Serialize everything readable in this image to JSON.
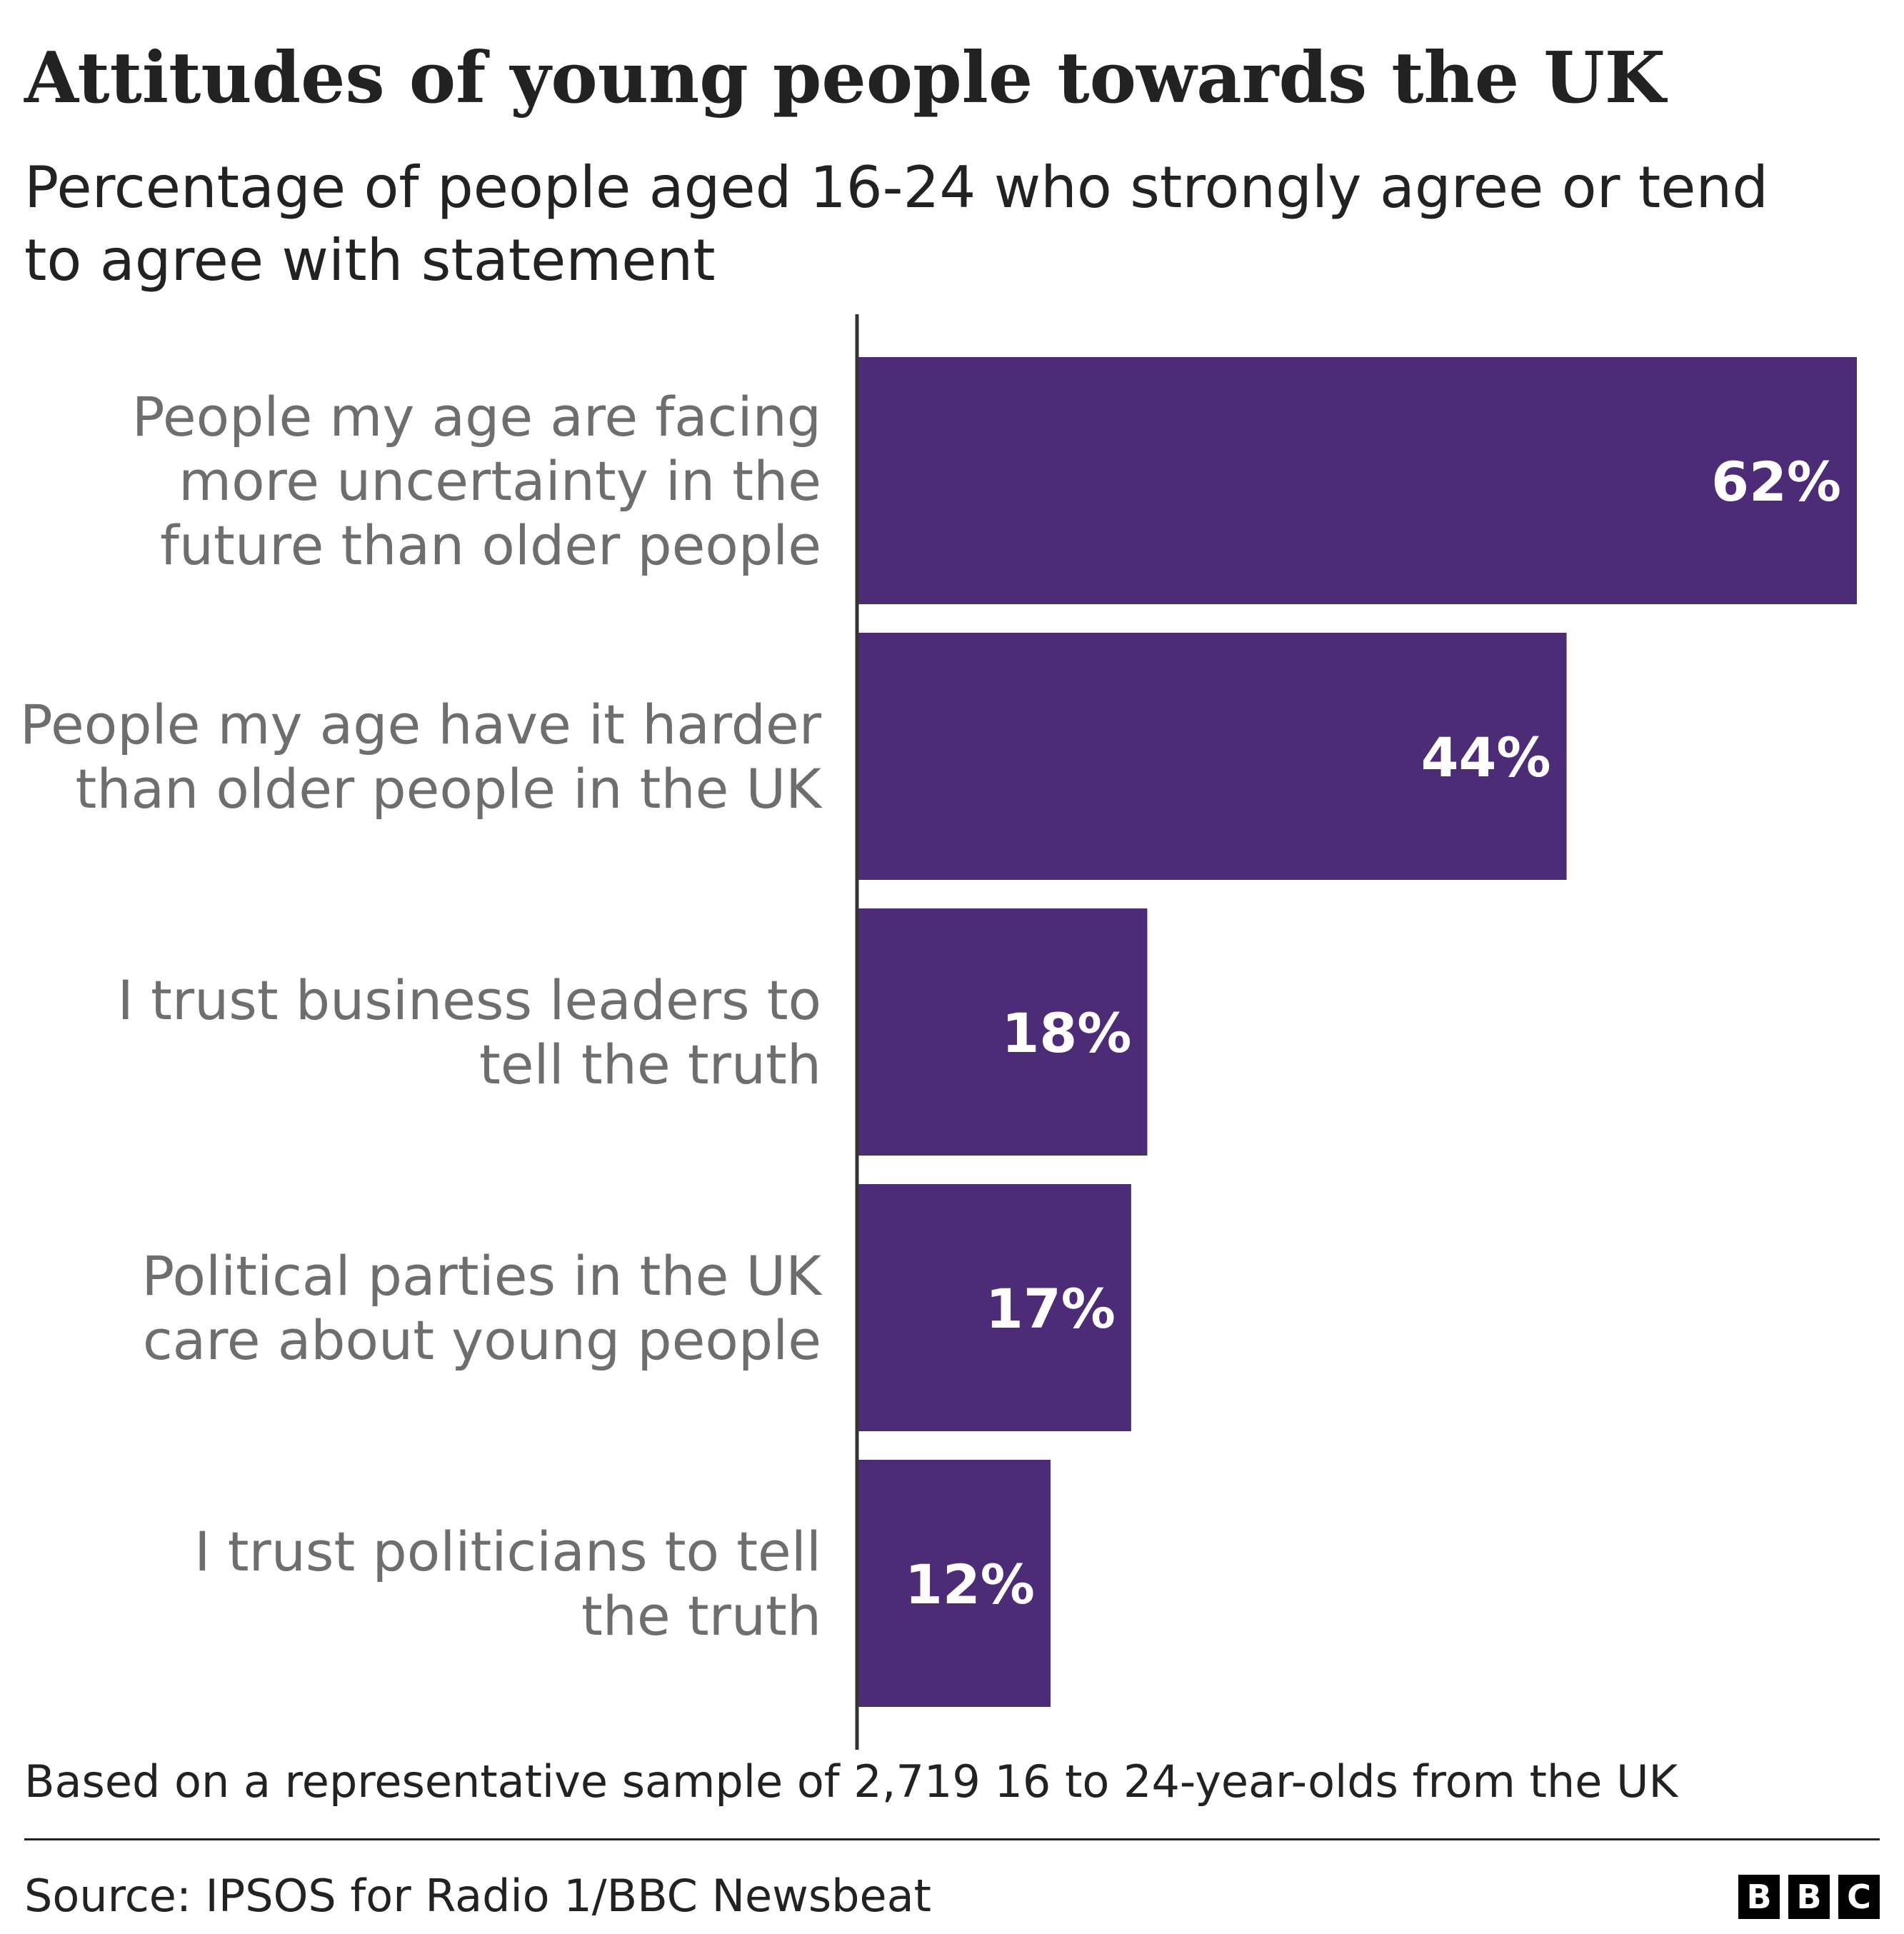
{
  "header": {
    "title": "Attitudes of young people towards the UK",
    "subtitle": "Percentage of people aged 16-24 who strongly agree or tend to agree with statement"
  },
  "chart_data": {
    "type": "bar",
    "orientation": "horizontal",
    "title": "Attitudes of young people towards the UK",
    "subtitle": "Percentage of people aged 16-24 who strongly agree or tend to agree with statement",
    "categories": [
      "People my age are facing more uncertainty in the future than older people",
      "People my age have it harder than older people in the UK",
      "I trust business leaders to tell the truth",
      "Political parties in the UK care about young people",
      "I trust politicians to tell the truth"
    ],
    "category_lines": [
      [
        "People my age are facing",
        "more uncertainty in the",
        "future than older people"
      ],
      [
        "People my age have it harder",
        "than older people in the UK"
      ],
      [
        "I trust business leaders to",
        "tell the truth"
      ],
      [
        "Political parties in the UK",
        "care about young people"
      ],
      [
        "I trust politicians to tell",
        "the truth"
      ]
    ],
    "values": [
      62,
      44,
      18,
      17,
      12
    ],
    "value_labels": [
      "62%",
      "44%",
      "18%",
      "17%",
      "12%"
    ],
    "unit": "%",
    "xlim": [
      0,
      62
    ],
    "grid": false,
    "legend": "none",
    "bar_color": "#4d2c77"
  },
  "footer": {
    "note": "Based on a representative sample of 2,719 16 to 24-year-olds from the UK",
    "source": "Source: IPSOS for Radio 1/BBC Newsbeat",
    "logo_letters": [
      "B",
      "B",
      "C"
    ]
  }
}
